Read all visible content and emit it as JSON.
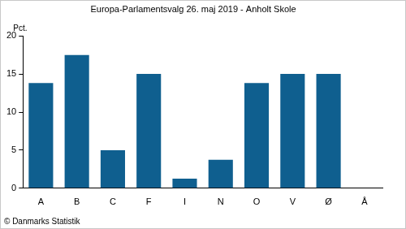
{
  "chart_data": {
    "type": "bar",
    "title": "Europa-Parlamentsvalg 26. maj 2019 - Anholt Skole",
    "ylabel": "Pct.",
    "source": "© Danmarks Statistik",
    "categories": [
      "A",
      "B",
      "C",
      "F",
      "I",
      "N",
      "O",
      "V",
      "Ø",
      "Å"
    ],
    "values": [
      13.8,
      17.5,
      5.0,
      15.0,
      1.25,
      3.75,
      13.8,
      15.0,
      15.0,
      0
    ],
    "color": "#0f5f8f",
    "ylim": [
      0,
      20
    ],
    "yticks": [
      0,
      5,
      10,
      15,
      20
    ],
    "grid": false
  }
}
